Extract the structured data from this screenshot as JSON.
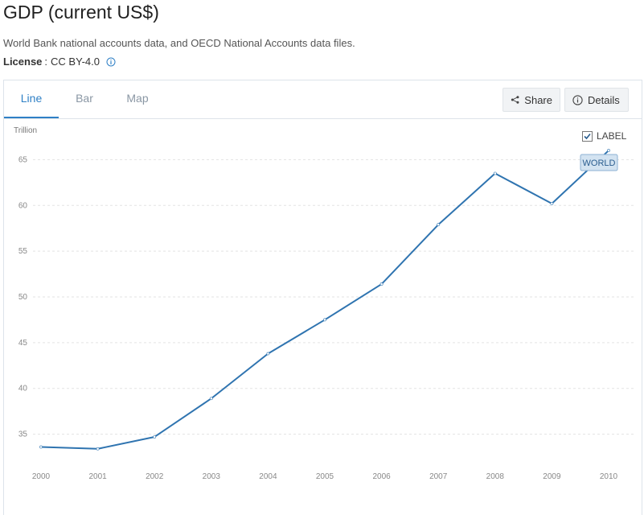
{
  "header": {
    "title": "GDP (current US$)",
    "source": "World Bank national accounts data, and OECD National Accounts data files.",
    "license_label": "License",
    "license_sep": ":",
    "license_value": "CC BY-4.0"
  },
  "tabs": [
    {
      "label": "Line",
      "active": true
    },
    {
      "label": "Bar",
      "active": false
    },
    {
      "label": "Map",
      "active": false
    }
  ],
  "actions": {
    "share_label": "Share",
    "details_label": "Details"
  },
  "label_toggle": {
    "text": "LABEL",
    "checked": true
  },
  "colors": {
    "accent": "#2f80c6",
    "line": "#2f74b0",
    "muted_tab": "#8a97a4"
  },
  "chart_data": {
    "type": "line",
    "unit_label": "Trillion",
    "x": [
      "2000",
      "2001",
      "2002",
      "2003",
      "2004",
      "2005",
      "2006",
      "2007",
      "2008",
      "2009",
      "2010"
    ],
    "series": [
      {
        "name": "WORLD",
        "values": [
          33.6,
          33.4,
          34.7,
          38.9,
          43.8,
          47.5,
          51.4,
          57.9,
          63.5,
          60.2,
          66.0
        ]
      }
    ],
    "yticks": [
      35,
      40,
      45,
      50,
      55,
      60,
      65
    ],
    "ylim": [
      32.5,
      67.5
    ],
    "grid": true,
    "end_label": true
  }
}
